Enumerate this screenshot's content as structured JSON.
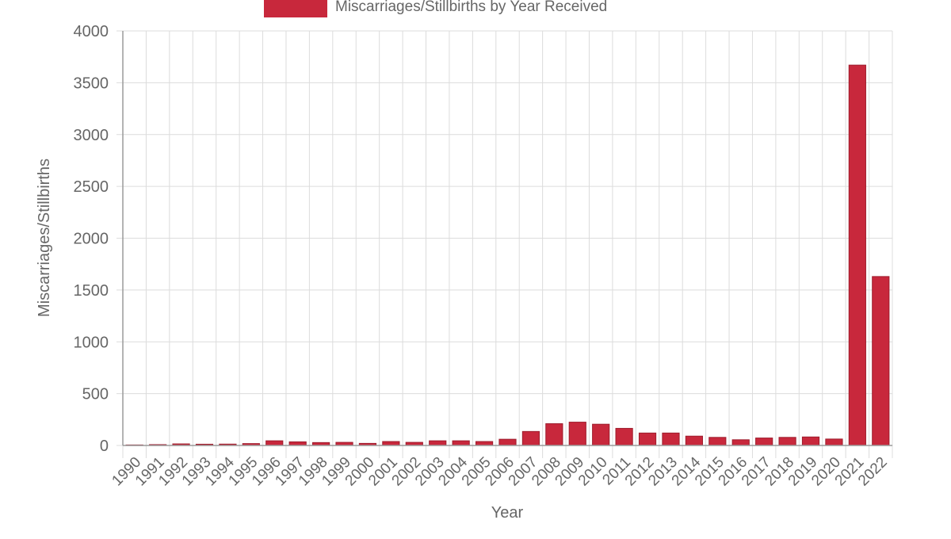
{
  "chart_data": {
    "type": "bar",
    "title": "",
    "xlabel": "Year",
    "ylabel": "Miscarriages/Stillbirths",
    "categories": [
      "1990",
      "1991",
      "1992",
      "1993",
      "1994",
      "1995",
      "1996",
      "1997",
      "1998",
      "1999",
      "2000",
      "2001",
      "2002",
      "2003",
      "2004",
      "2005",
      "2006",
      "2007",
      "2008",
      "2009",
      "2010",
      "2011",
      "2012",
      "2013",
      "2014",
      "2015",
      "2016",
      "2017",
      "2018",
      "2019",
      "2020",
      "2021",
      "2022"
    ],
    "series": [
      {
        "name": "Miscarriages/Stillbirths by Year Received",
        "color": "#c8283c",
        "values": [
          5,
          8,
          15,
          12,
          13,
          18,
          45,
          35,
          28,
          30,
          20,
          38,
          30,
          45,
          45,
          38,
          60,
          135,
          210,
          225,
          205,
          165,
          120,
          120,
          90,
          78,
          55,
          72,
          78,
          82,
          62,
          3670,
          1630
        ]
      }
    ],
    "ylim": [
      0,
      4000
    ],
    "yticks": [
      0,
      500,
      1000,
      1500,
      2000,
      2500,
      3000,
      3500,
      4000
    ],
    "grid": true,
    "legend": "top-center"
  },
  "colors": {
    "bar": "#c8283c",
    "bar_border": "#9e1c2c",
    "grid": "#dcdcdc",
    "axis": "#9a9a9a",
    "text": "#666666"
  }
}
